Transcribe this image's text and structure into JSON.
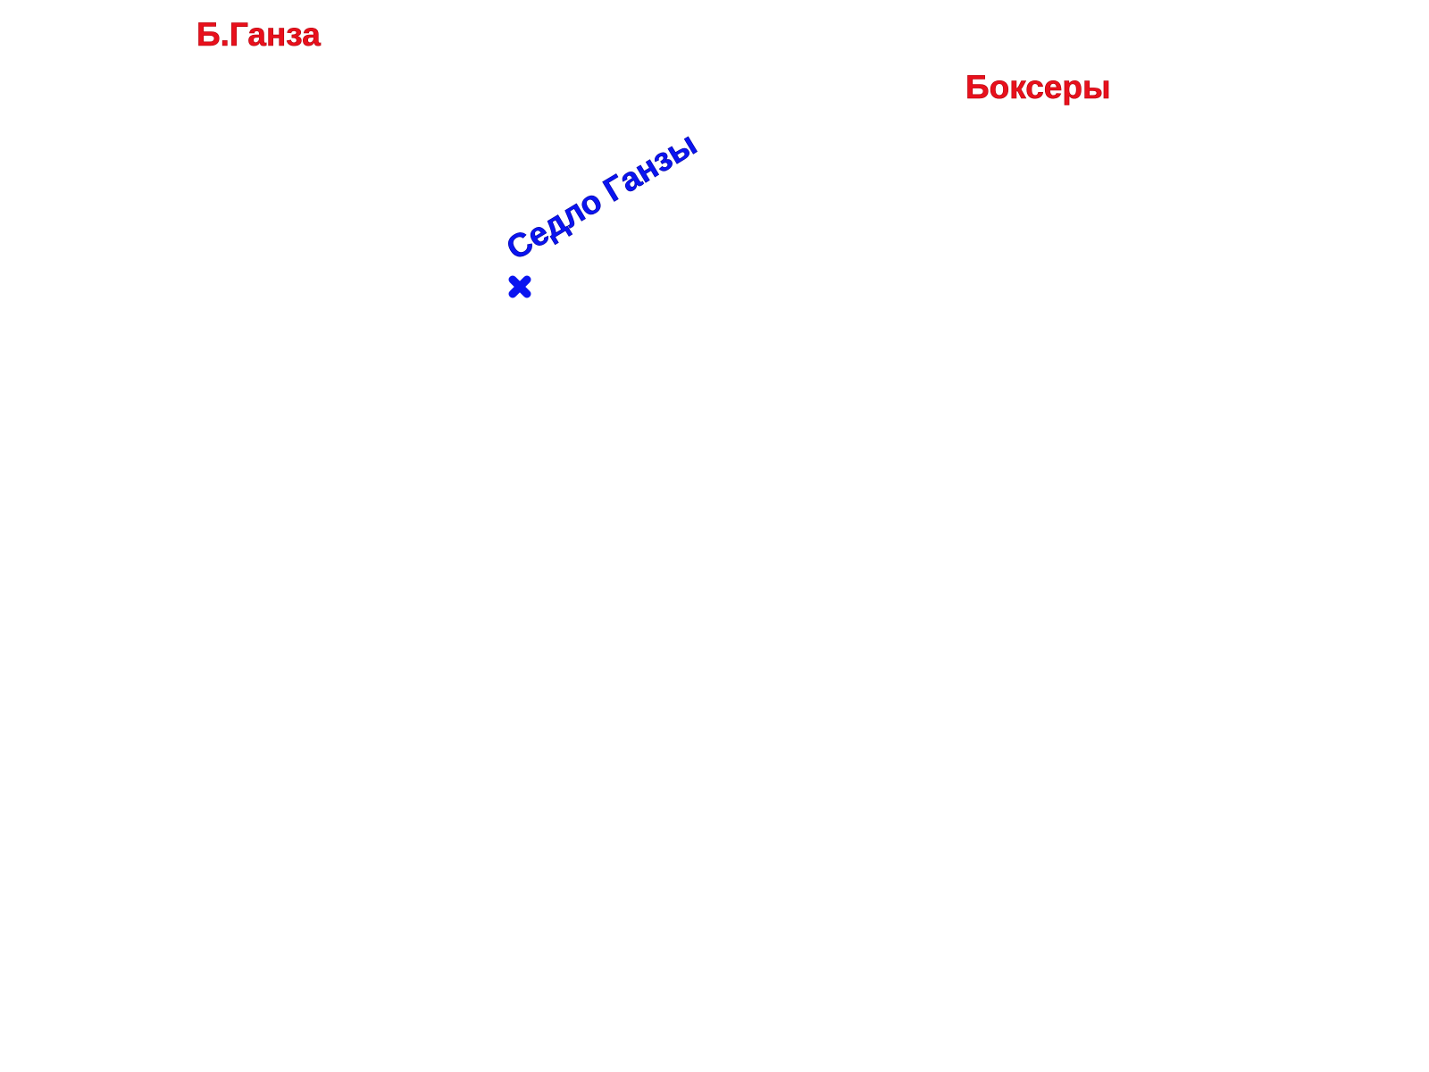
{
  "labels": {
    "peaks": [
      "Б.Ганза",
      "Боксеры"
    ],
    "pass": "Седло Ганзы"
  }
}
